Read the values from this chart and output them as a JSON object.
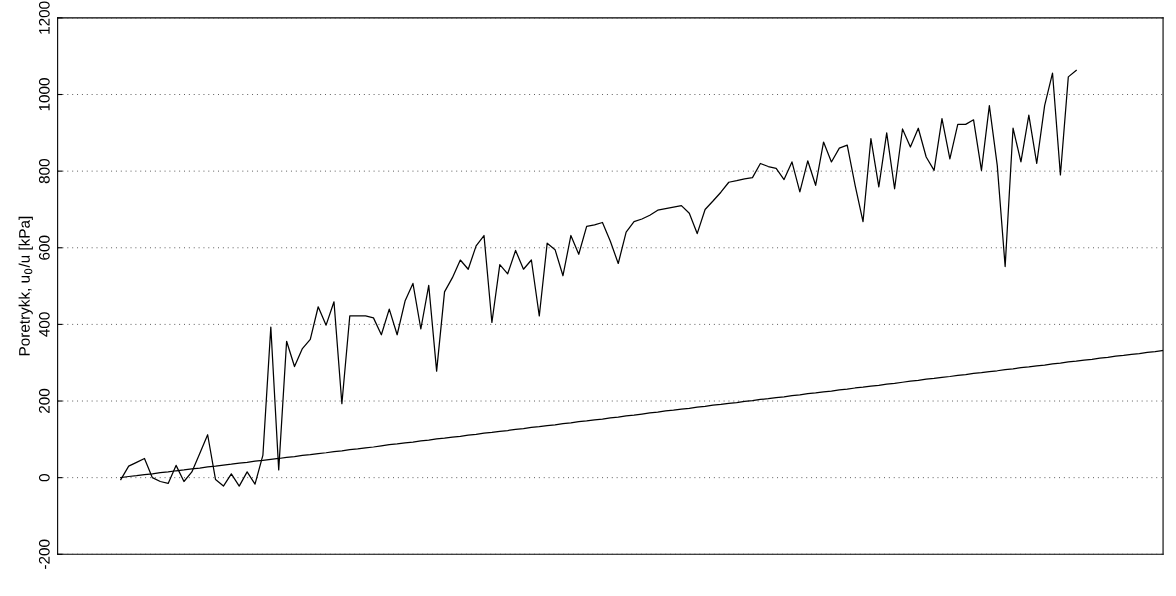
{
  "chart_data": {
    "type": "line",
    "ylabel": "Poretrykk, u$_{0}$/u [kPa]",
    "categories": [
      null,
      null,
      null,
      null,
      null,
      null,
      null,
      null,
      null,
      null,
      null,
      null,
      null,
      null,
      null,
      null,
      null,
      null,
      null,
      null,
      null,
      null,
      null,
      null,
      null,
      null,
      null,
      null,
      null,
      null,
      null,
      null,
      null,
      null,
      null,
      null,
      null,
      null,
      null,
      null,
      null,
      null,
      null,
      null,
      null,
      null,
      null,
      null,
      null,
      null,
      null,
      null,
      null,
      null,
      null,
      null,
      null,
      null,
      null,
      null,
      null,
      null,
      null,
      null,
      null,
      null,
      null,
      null,
      null,
      null,
      null,
      null,
      null,
      null,
      null,
      null,
      null,
      null,
      null,
      null,
      null,
      null,
      null,
      null,
      null,
      null,
      null,
      null,
      null,
      null,
      null,
      null,
      null,
      null,
      null,
      null,
      null,
      null,
      null,
      null,
      null,
      null,
      null,
      null,
      null,
      null,
      null,
      null,
      null,
      null,
      null,
      null,
      null,
      null,
      null,
      null,
      null,
      null,
      null,
      null,
      null,
      null,
      null,
      null,
      null,
      null,
      null,
      null,
      null,
      null,
      null,
      null,
      null,
      null,
      null,
      null,
      null,
      null,
      null,
      null,
      null
    ],
    "ylim": [
      -200,
      1200
    ],
    "yticks": [
      -200,
      0,
      200,
      400,
      600,
      800,
      1000,
      1200
    ],
    "tick_labels": "y",
    "grid": "y",
    "line_style": "solid",
    "marker": "none",
    "series": [
      {
        "color": "#000000",
        "values": [
          null,
          null,
          null,
          null,
          null,
          null,
          null,
          null,
          -5,
          30,
          40,
          50,
          0,
          -10,
          -15,
          32,
          -10,
          15,
          63,
          112,
          -5,
          -22,
          10,
          -22,
          15,
          -17,
          59,
          393,
          20,
          356,
          290,
          337,
          361,
          446,
          398,
          459,
          193,
          422,
          422,
          422,
          417,
          373,
          440,
          373,
          461,
          507,
          388,
          502,
          278,
          485,
          522,
          568,
          544,
          605,
          632,
          405,
          556,
          532,
          593,
          544,
          568,
          422,
          612,
          595,
          527,
          632,
          583,
          656,
          660,
          666,
          617,
          559,
          641,
          668,
          675,
          685,
          698,
          702,
          706,
          710,
          690,
          637,
          700,
          722,
          745,
          771,
          775,
          780,
          783,
          820,
          812,
          807,
          778,
          824,
          746,
          827,
          763,
          876,
          824,
          860,
          868,
          763,
          668,
          885,
          759,
          900,
          754,
          910,
          863,
          912,
          837,
          802,
          937,
          832,
          922,
          922,
          934,
          802,
          971,
          815,
          551,
          912,
          824,
          946,
          820,
          971,
          1056,
          790,
          1046,
          1063,
          null,
          null,
          null,
          null,
          null,
          null,
          null,
          null,
          null,
          null,
          null
        ]
      },
      {
        "color": "#000000",
        "values": [
          null,
          null,
          null,
          null,
          null,
          null,
          null,
          null,
          0,
          3,
          5,
          8,
          10,
          13,
          15,
          18,
          20,
          23,
          25,
          28,
          30,
          33,
          35,
          38,
          40,
          43,
          45,
          48,
          50,
          53,
          55,
          58,
          60,
          63,
          65,
          68,
          70,
          73,
          75,
          78,
          80,
          83,
          86,
          88,
          91,
          93,
          96,
          98,
          101,
          103,
          106,
          108,
          111,
          113,
          116,
          118,
          121,
          123,
          126,
          128,
          131,
          133,
          136,
          138,
          141,
          143,
          146,
          148,
          151,
          153,
          156,
          158,
          161,
          163,
          166,
          169,
          171,
          174,
          176,
          179,
          181,
          184,
          186,
          189,
          191,
          194,
          196,
          199,
          201,
          204,
          206,
          209,
          211,
          214,
          216,
          219,
          221,
          224,
          226,
          229,
          231,
          234,
          236,
          239,
          241,
          244,
          246,
          249,
          252,
          254,
          257,
          259,
          262,
          264,
          267,
          269,
          272,
          274,
          277,
          279,
          282,
          284,
          287,
          289,
          292,
          294,
          297,
          299,
          302,
          304,
          307,
          309,
          312,
          314,
          317,
          319,
          322,
          324,
          327,
          329,
          332
        ]
      }
    ]
  }
}
